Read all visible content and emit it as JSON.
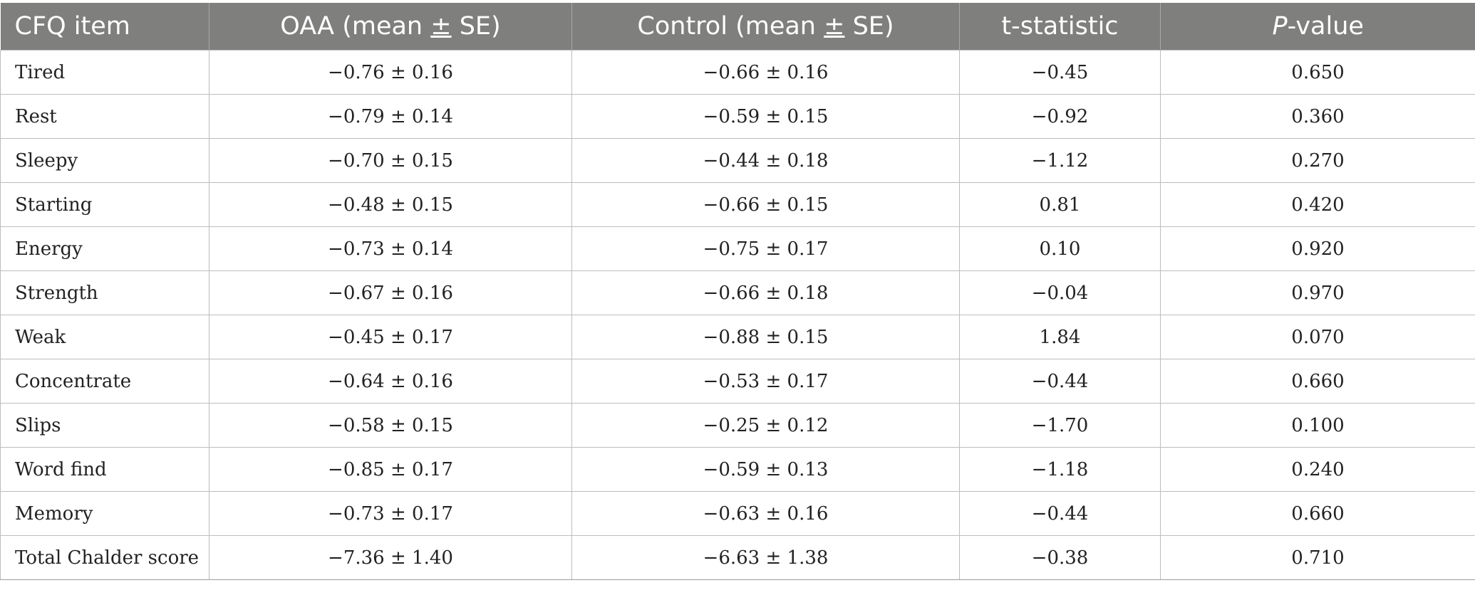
{
  "table": {
    "headers": {
      "item": "CFQ item",
      "oaa_prefix": "OAA (mean ",
      "oaa_pm": "±",
      "oaa_suffix": " SE)",
      "control_prefix": "Control (mean ",
      "control_pm": "±",
      "control_suffix": " SE)",
      "tstat": "t-statistic",
      "p_italic": "P",
      "p_rest": "-value"
    },
    "rows": [
      {
        "item": "Tired",
        "oaa": "−0.76 ± 0.16",
        "control": "−0.66 ± 0.16",
        "t": "−0.45",
        "p": "0.650"
      },
      {
        "item": "Rest",
        "oaa": "−0.79 ± 0.14",
        "control": "−0.59 ± 0.15",
        "t": "−0.92",
        "p": "0.360"
      },
      {
        "item": "Sleepy",
        "oaa": "−0.70 ± 0.15",
        "control": "−0.44 ± 0.18",
        "t": "−1.12",
        "p": "0.270"
      },
      {
        "item": "Starting",
        "oaa": "−0.48 ± 0.15",
        "control": "−0.66 ± 0.15",
        "t": "0.81",
        "p": "0.420"
      },
      {
        "item": "Energy",
        "oaa": "−0.73 ± 0.14",
        "control": "−0.75 ± 0.17",
        "t": "0.10",
        "p": "0.920"
      },
      {
        "item": "Strength",
        "oaa": "−0.67 ± 0.16",
        "control": "−0.66 ± 0.18",
        "t": "−0.04",
        "p": "0.970"
      },
      {
        "item": "Weak",
        "oaa": "−0.45 ± 0.17",
        "control": "−0.88 ± 0.15",
        "t": "1.84",
        "p": "0.070"
      },
      {
        "item": "Concentrate",
        "oaa": "−0.64 ± 0.16",
        "control": "−0.53 ± 0.17",
        "t": "−0.44",
        "p": "0.660"
      },
      {
        "item": "Slips",
        "oaa": "−0.58 ± 0.15",
        "control": "−0.25 ± 0.12",
        "t": "−1.70",
        "p": "0.100"
      },
      {
        "item": "Word find",
        "oaa": "−0.85 ± 0.17",
        "control": "−0.59 ± 0.13",
        "t": "−1.18",
        "p": "0.240"
      },
      {
        "item": "Memory",
        "oaa": "−0.73 ± 0.17",
        "control": "−0.63 ± 0.16",
        "t": "−0.44",
        "p": "0.660"
      },
      {
        "item": "Total Chalder score",
        "oaa": "−7.36 ± 1.40",
        "control": "−6.63 ± 1.38",
        "t": "−0.38",
        "p": "0.710"
      }
    ]
  },
  "colors": {
    "header_bg": "#7f7f7e",
    "header_text": "#ffffff",
    "grid": "#bdbdbd",
    "body_text": "#222222"
  }
}
